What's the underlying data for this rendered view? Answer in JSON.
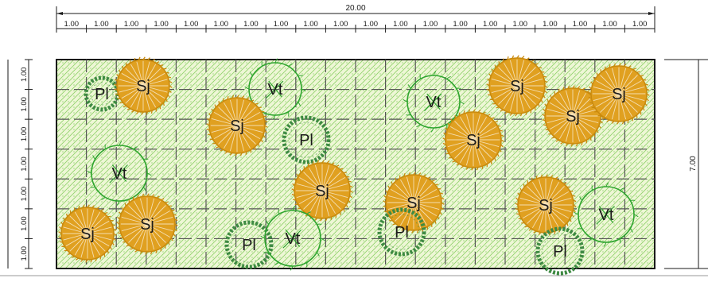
{
  "drawing": {
    "total_width_label": "20.00",
    "total_height_label": "7.00",
    "top_segment_label": "1.00",
    "left_segment_label": "1.00",
    "top_segment_count": 20,
    "left_segment_count": 7
  },
  "colors": {
    "line": "#1a1a1a",
    "bed_fill": "#eef7d6",
    "hatch": "#8fd16a",
    "sj": "#e0a020",
    "sj_dark": "#c98a0e",
    "vt": "#2fa52f",
    "pl": "#3e8a43"
  },
  "plants": [
    {
      "label": "Pl",
      "type": "pl"
    },
    {
      "label": "Sj",
      "type": "sj"
    },
    {
      "label": "Vt",
      "type": "vt"
    },
    {
      "label": "Sj",
      "type": "sj"
    },
    {
      "label": "Pl",
      "type": "pl"
    },
    {
      "label": "Vt",
      "type": "vt"
    },
    {
      "label": "Sj",
      "type": "sj"
    },
    {
      "label": "Sj",
      "type": "sj"
    },
    {
      "label": "Sj",
      "type": "sj"
    },
    {
      "label": "Sj",
      "type": "sj"
    },
    {
      "label": "Vt",
      "type": "vt"
    },
    {
      "label": "Sj",
      "type": "sj"
    },
    {
      "label": "Sj",
      "type": "sj"
    },
    {
      "label": "Sj",
      "type": "sj"
    },
    {
      "label": "Sj",
      "type": "sj"
    },
    {
      "label": "Pl",
      "type": "pl"
    },
    {
      "label": "Vt",
      "type": "vt"
    },
    {
      "label": "Pl",
      "type": "pl"
    },
    {
      "label": "Sj",
      "type": "sj"
    },
    {
      "label": "Vt",
      "type": "vt"
    },
    {
      "label": "Pl",
      "type": "pl"
    }
  ]
}
